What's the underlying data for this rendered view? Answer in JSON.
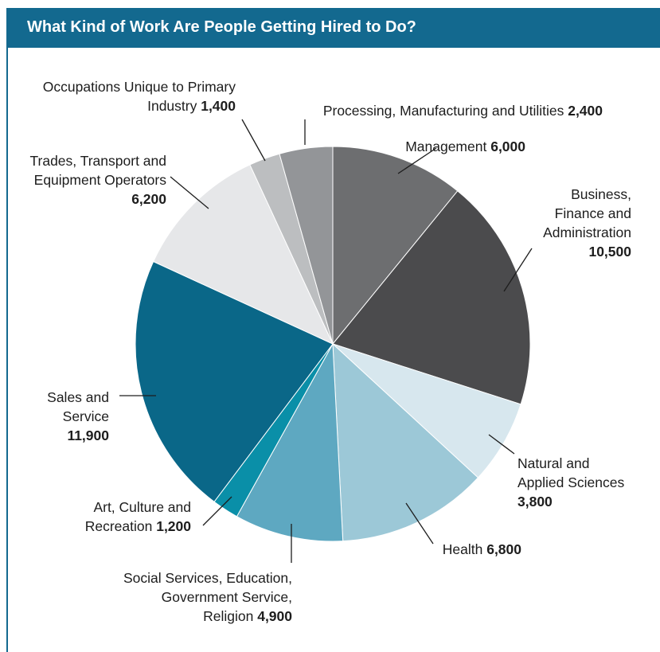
{
  "header": {
    "title": "What Kind of Work Are People Getting Hired to Do?"
  },
  "chart_data": {
    "type": "pie",
    "title": "What Kind of Work Are People Getting Hired to Do?",
    "start": "12 o'clock",
    "direction": "clockwise",
    "slices": [
      {
        "id": "management",
        "lines": [
          "Management"
        ],
        "value": 6000,
        "value_label": "6,000",
        "color": "#6d6e70"
      },
      {
        "id": "business",
        "lines": [
          "Business,",
          "Finance and",
          "Administration"
        ],
        "value": 10500,
        "value_label": "10,500",
        "color": "#4b4b4d"
      },
      {
        "id": "natural",
        "lines": [
          "Natural and",
          "Applied Sciences"
        ],
        "value": 3800,
        "value_label": "3,800",
        "color": "#d7e7ee"
      },
      {
        "id": "health",
        "lines": [
          "Health"
        ],
        "value": 6800,
        "value_label": "6,800",
        "color": "#9cc8d7"
      },
      {
        "id": "social",
        "lines": [
          "Social Services, Education,",
          "Government Service,",
          "Religion"
        ],
        "value": 4900,
        "value_label": "4,900",
        "color": "#5ea8c1"
      },
      {
        "id": "art",
        "lines": [
          "Art, Culture and",
          "Recreation"
        ],
        "value": 1200,
        "value_label": "1,200",
        "color": "#0a8fa8"
      },
      {
        "id": "sales",
        "lines": [
          "Sales and",
          "Service"
        ],
        "value": 11900,
        "value_label": "11,900",
        "color": "#0a6788"
      },
      {
        "id": "trades",
        "lines": [
          "Trades, Transport and",
          "Equipment Operators"
        ],
        "value": 6200,
        "value_label": "6,200",
        "color": "#e6e7e9"
      },
      {
        "id": "primary",
        "lines": [
          "Occupations Unique to Primary",
          "Industry"
        ],
        "value": 1400,
        "value_label": "1,400",
        "color": "#bcbec0"
      },
      {
        "id": "processing",
        "lines": [
          "Processing, Manufacturing and Utilities"
        ],
        "value": 2400,
        "value_label": "2,400",
        "color": "#939598"
      }
    ]
  }
}
